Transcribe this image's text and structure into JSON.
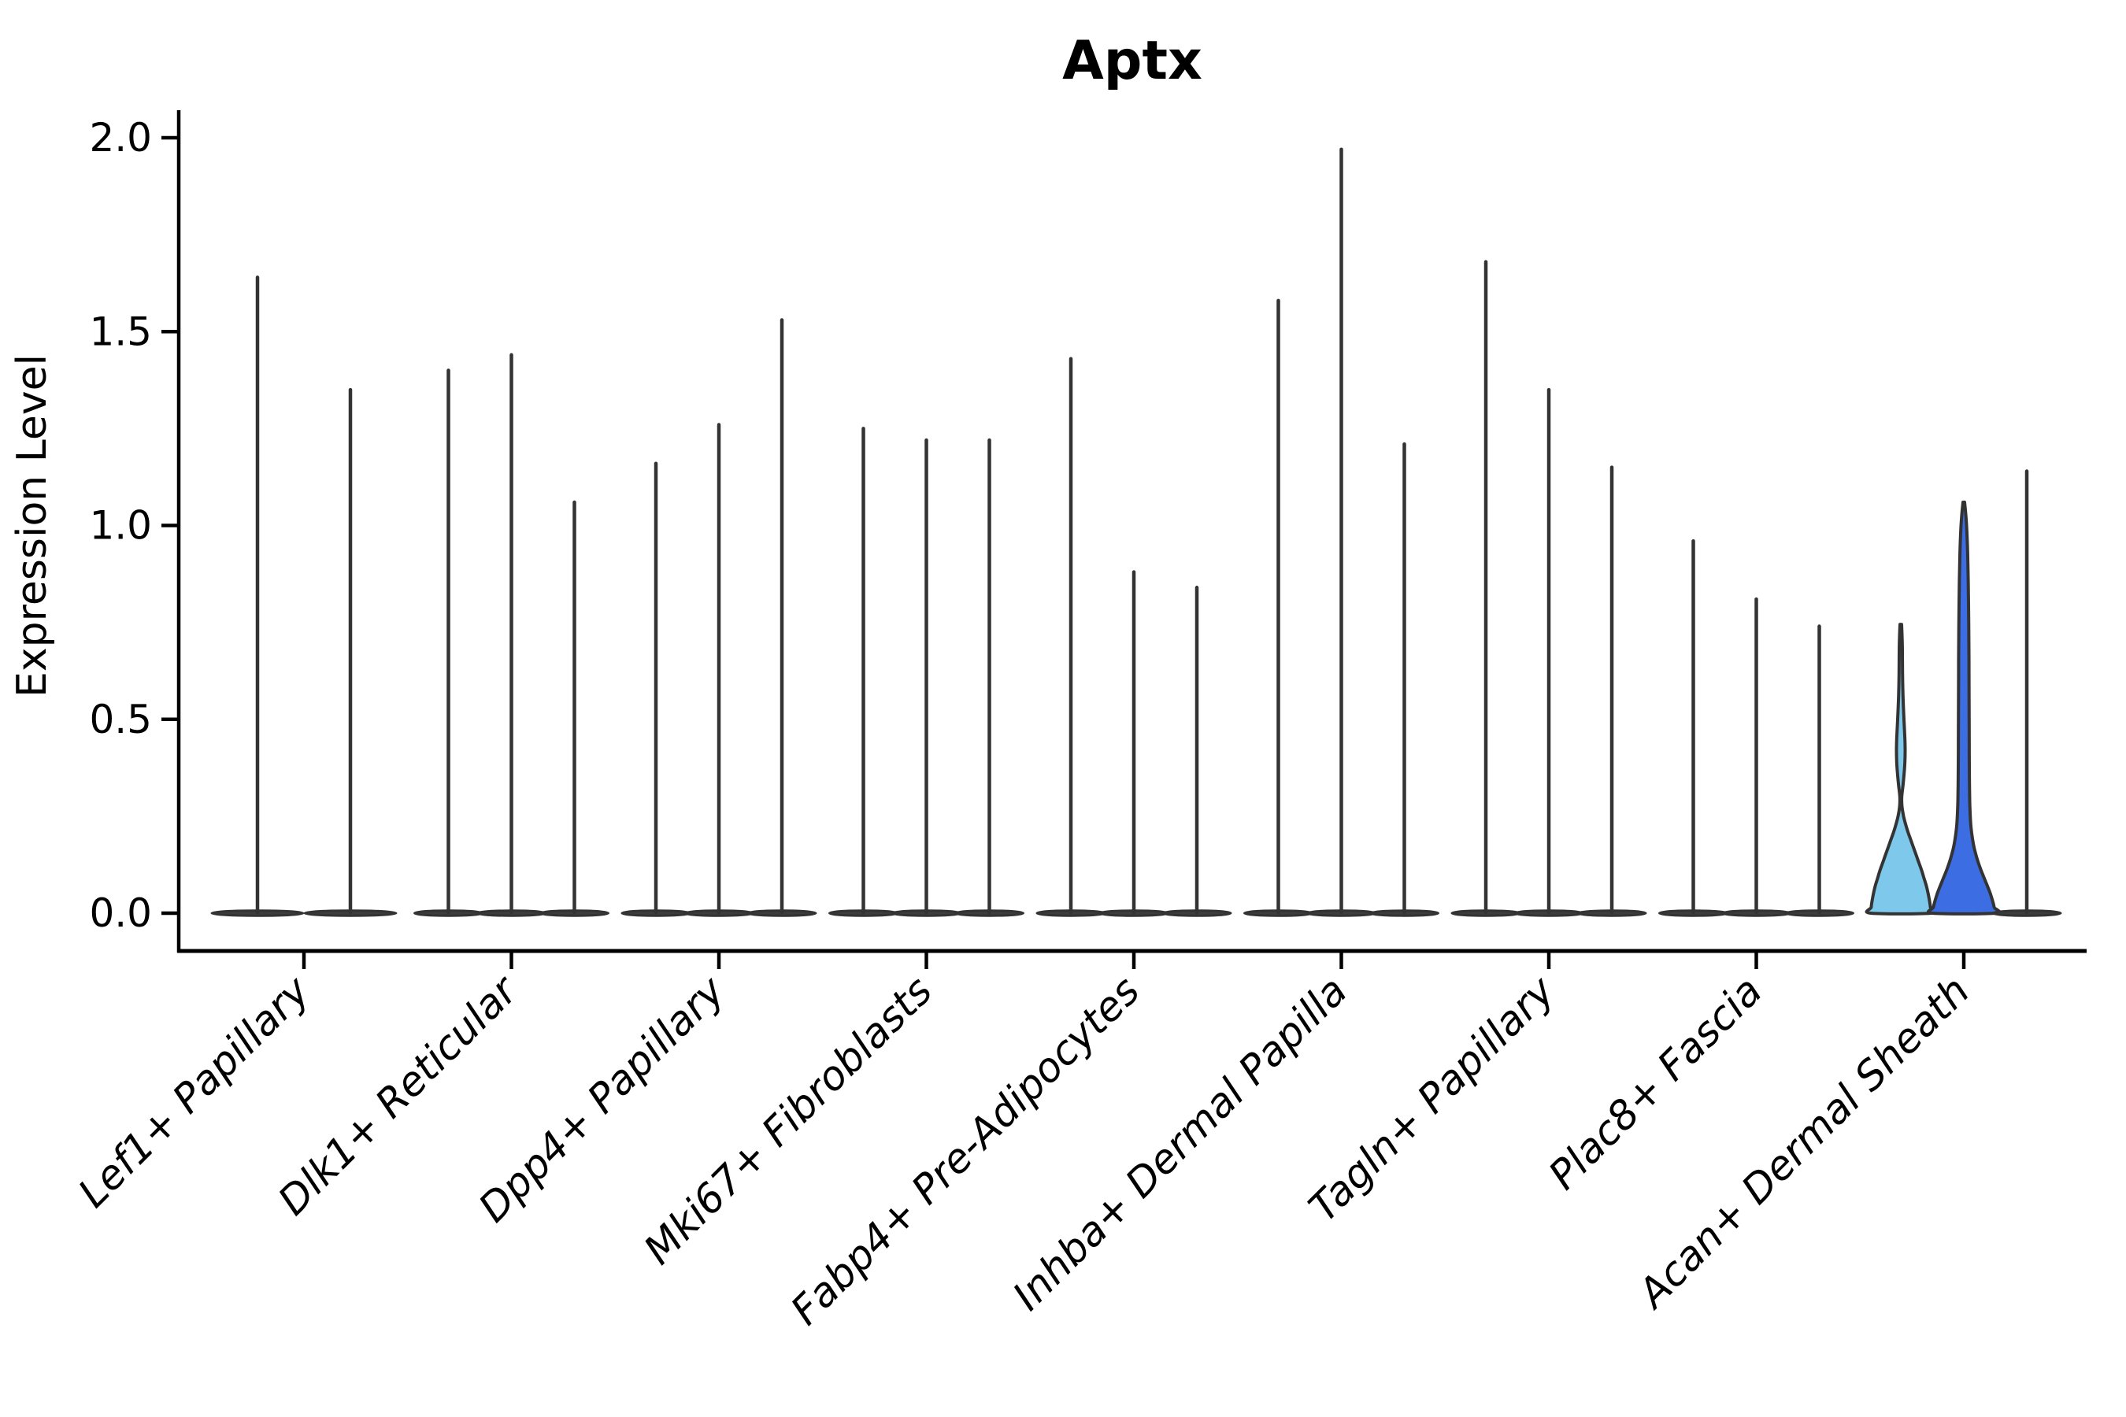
{
  "figure": {
    "title": "Aptx",
    "y_axis_label": "Expression Level"
  },
  "chart_data": {
    "type": "violin",
    "title": "Aptx",
    "xlabel": "",
    "ylabel": "Expression Level",
    "ylim": [
      -0.09,
      2.08
    ],
    "grid": false,
    "legend": "none",
    "x_tick_rotation_deg": 45,
    "x_tick_font_style": "italic",
    "yticks": [
      {
        "label": "0.0",
        "value": 0.0
      },
      {
        "label": "0.5",
        "value": 0.5
      },
      {
        "label": "1.0",
        "value": 1.0
      },
      {
        "label": "1.5",
        "value": 1.5
      },
      {
        "label": "2.0",
        "value": 2.0
      }
    ],
    "colors": {
      "axis": "#000000",
      "spike_stroke": "#333333",
      "base_fill": "#3d3d3d",
      "highlight_light_blue": "#7EC9EB",
      "highlight_royal_blue": "#3D6DE2"
    },
    "categories": [
      "Lef1+ Papillary",
      "Dlk1+ Reticular",
      "Dpp4+ Papillary",
      "Mki67+ Fibroblasts",
      "Fabp4+ Pre-Adipocytes",
      "Inhba+ Dermal Papilla",
      "Tagln+ Papillary",
      "Plac8+ Fascia",
      "Acan+ Dermal Sheath"
    ],
    "groups": [
      {
        "category": "Lef1+ Papillary",
        "violins": [
          {
            "max": 1.64
          },
          {
            "max": 1.35
          }
        ]
      },
      {
        "category": "Dlk1+ Reticular",
        "violins": [
          {
            "max": 1.4
          },
          {
            "max": 1.44
          },
          {
            "max": 1.06
          }
        ]
      },
      {
        "category": "Dpp4+ Papillary",
        "violins": [
          {
            "max": 1.16
          },
          {
            "max": 1.26
          },
          {
            "max": 1.53
          }
        ]
      },
      {
        "category": "Mki67+ Fibroblasts",
        "violins": [
          {
            "max": 1.25
          },
          {
            "max": 1.22
          },
          {
            "max": 1.22
          }
        ]
      },
      {
        "category": "Fabp4+ Pre-Adipocytes",
        "violins": [
          {
            "max": 1.43
          },
          {
            "max": 0.88
          },
          {
            "max": 0.84
          }
        ]
      },
      {
        "category": "Inhba+ Dermal Papilla",
        "violins": [
          {
            "max": 1.58
          },
          {
            "max": 1.97
          },
          {
            "max": 1.21
          }
        ]
      },
      {
        "category": "Tagln+ Papillary",
        "violins": [
          {
            "max": 1.68
          },
          {
            "max": 1.35
          },
          {
            "max": 1.15
          }
        ]
      },
      {
        "category": "Plac8+ Fascia",
        "violins": [
          {
            "max": 0.96
          },
          {
            "max": 0.81
          },
          {
            "max": 0.74
          }
        ]
      },
      {
        "category": "Acan+ Dermal Sheath",
        "violins": [
          {
            "max": 0.745,
            "fill": "#7EC9EB",
            "profile": [
              [
                0.745,
                1
              ],
              [
                0.72,
                1.5
              ],
              [
                0.68,
                2
              ],
              [
                0.62,
                2.2
              ],
              [
                0.56,
                2.8
              ],
              [
                0.5,
                4
              ],
              [
                0.45,
                5.2
              ],
              [
                0.42,
                5.5
              ],
              [
                0.39,
                5.2
              ],
              [
                0.36,
                4.2
              ],
              [
                0.33,
                2.8
              ],
              [
                0.3,
                1.2
              ],
              [
                0.275,
                1.5
              ],
              [
                0.25,
                3.5
              ],
              [
                0.23,
                6
              ],
              [
                0.21,
                9
              ],
              [
                0.19,
                12.5
              ],
              [
                0.17,
                16
              ],
              [
                0.15,
                19.5
              ],
              [
                0.13,
                23
              ],
              [
                0.11,
                26.5
              ],
              [
                0.09,
                29.5
              ],
              [
                0.07,
                32.5
              ],
              [
                0.05,
                34.8
              ],
              [
                0.03,
                36.6
              ],
              [
                0.015,
                37.6
              ],
              [
                0.0,
                38
              ]
            ]
          },
          {
            "max": 1.06,
            "fill": "#3D6DE2",
            "profile": [
              [
                1.06,
                1
              ],
              [
                1.04,
                2
              ],
              [
                1.01,
                3.2
              ],
              [
                0.97,
                4.2
              ],
              [
                0.92,
                5
              ],
              [
                0.86,
                5.6
              ],
              [
                0.8,
                6
              ],
              [
                0.74,
                6.3
              ],
              [
                0.68,
                6.5
              ],
              [
                0.62,
                6.6
              ],
              [
                0.56,
                6.7
              ],
              [
                0.5,
                6.8
              ],
              [
                0.44,
                6.9
              ],
              [
                0.38,
                7
              ],
              [
                0.33,
                7.2
              ],
              [
                0.29,
                7.5
              ],
              [
                0.26,
                8
              ],
              [
                0.23,
                8.8
              ],
              [
                0.21,
                9.8
              ],
              [
                0.19,
                11.2
              ],
              [
                0.17,
                13
              ],
              [
                0.15,
                15.5
              ],
              [
                0.13,
                18.5
              ],
              [
                0.11,
                22
              ],
              [
                0.09,
                26
              ],
              [
                0.07,
                30
              ],
              [
                0.05,
                33.8
              ],
              [
                0.03,
                36.8
              ],
              [
                0.015,
                38.6
              ],
              [
                0.0,
                39.5
              ]
            ]
          },
          {
            "max": 1.14
          }
        ]
      }
    ]
  }
}
